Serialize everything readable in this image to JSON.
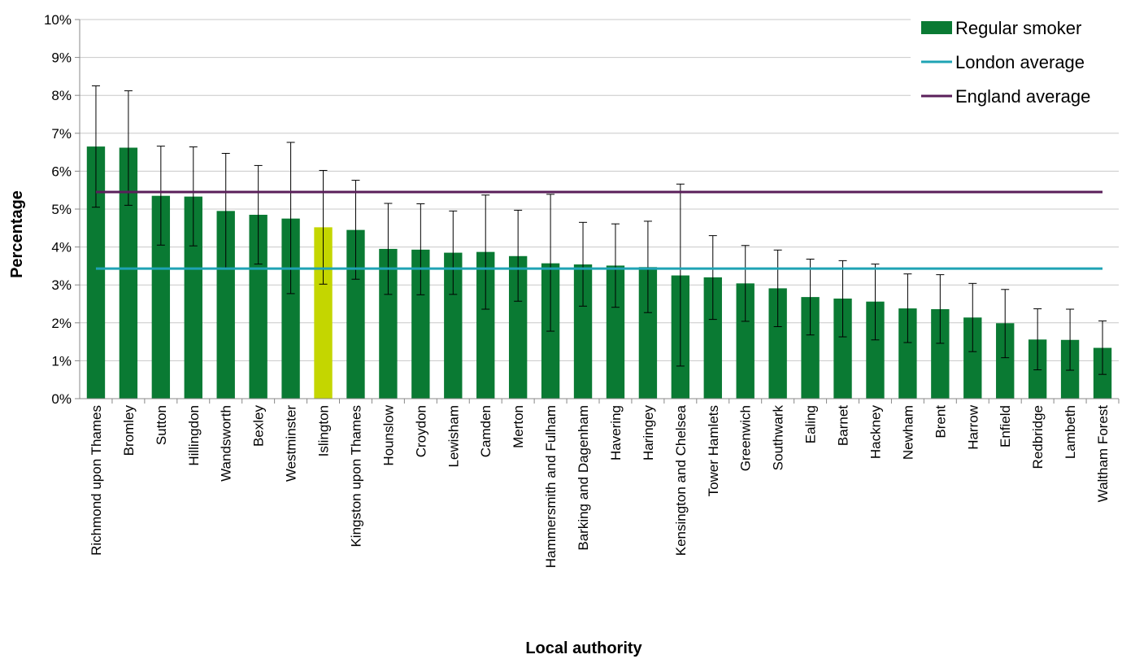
{
  "chart_data": {
    "type": "bar",
    "xlabel": "Local authority",
    "ylabel": "Percentage",
    "ylim": [
      0,
      10
    ],
    "yticks": [
      "0%",
      "1%",
      "2%",
      "3%",
      "4%",
      "5%",
      "6%",
      "7%",
      "8%",
      "9%",
      "10%"
    ],
    "grid": true,
    "legend_position": "top-right",
    "categories": [
      "Richmond upon Thames",
      "Bromley",
      "Sutton",
      "Hillingdon",
      "Wandsworth",
      "Bexley",
      "Westminster",
      "Islington",
      "Kingston upon Thames",
      "Hounslow",
      "Croydon",
      "Lewisham",
      "Camden",
      "Merton",
      "Hammersmith and Fulham",
      "Barking and Dagenham",
      "Havering",
      "Haringey",
      "Kensington and Chelsea",
      "Tower Hamlets",
      "Greenwich",
      "Southwark",
      "Ealing",
      "Barnet",
      "Hackney",
      "Newham",
      "Brent",
      "Harrow",
      "Enfield",
      "Redbridge",
      "Lambeth",
      "Waltham Forest"
    ],
    "series": [
      {
        "name": "Regular smoker",
        "kind": "bar",
        "color": "#0a7a33",
        "highlight_color": "#c4d600",
        "highlight_category": "Islington",
        "values": [
          6.65,
          6.62,
          5.35,
          5.33,
          4.95,
          4.85,
          4.75,
          4.52,
          4.45,
          3.95,
          3.93,
          3.85,
          3.87,
          3.76,
          3.57,
          3.54,
          3.51,
          3.47,
          3.25,
          3.2,
          3.04,
          2.91,
          2.68,
          2.64,
          2.56,
          2.38,
          2.36,
          2.14,
          1.99,
          1.56,
          1.55,
          1.34
        ],
        "error_low": [
          5.05,
          5.1,
          4.05,
          4.03,
          3.45,
          3.55,
          2.77,
          3.02,
          3.15,
          2.75,
          2.74,
          2.75,
          2.36,
          2.57,
          1.78,
          2.44,
          2.41,
          2.27,
          0.86,
          2.09,
          2.04,
          1.9,
          1.68,
          1.63,
          1.55,
          1.48,
          1.46,
          1.24,
          1.08,
          0.76,
          0.75,
          0.64
        ],
        "error_high": [
          8.25,
          8.12,
          6.66,
          6.64,
          6.47,
          6.15,
          6.76,
          6.02,
          5.76,
          5.15,
          5.14,
          4.95,
          5.37,
          4.97,
          5.39,
          4.65,
          4.61,
          4.68,
          5.66,
          4.3,
          4.04,
          3.92,
          3.68,
          3.64,
          3.55,
          3.29,
          3.27,
          3.04,
          2.88,
          2.37,
          2.36,
          2.05
        ]
      },
      {
        "name": "London average",
        "kind": "line",
        "color": "#1fa3b4",
        "value": 3.43
      },
      {
        "name": "England average",
        "kind": "line",
        "color": "#5a1f5a",
        "value": 5.45
      }
    ]
  }
}
